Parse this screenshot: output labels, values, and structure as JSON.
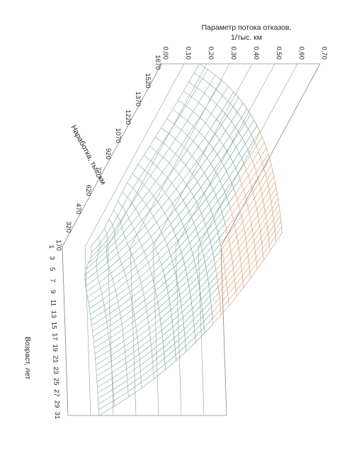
{
  "chart_data": {
    "type": "surface",
    "title": "",
    "z_axis": {
      "label_line1": "Параметр потока отказов,",
      "label_line2": "1/тыс. км",
      "ticks": [
        "0,00",
        "0,10",
        "0,20",
        "0,30",
        "0,40",
        "0,50",
        "0,60",
        "0,70"
      ],
      "range": [
        0,
        0.7
      ]
    },
    "y_axis": {
      "label": "Наработка, тыс. км",
      "ticks": [
        "170",
        "320",
        "470",
        "620",
        "770",
        "920",
        "1070",
        "1220",
        "1370",
        "1520",
        "1670"
      ],
      "range": [
        170,
        1670
      ]
    },
    "x_axis": {
      "label": "Возраст, лет",
      "ticks": [
        "1",
        "3",
        "5",
        "7",
        "9",
        "11",
        "13",
        "15",
        "17",
        "19",
        "21",
        "23",
        "25",
        "27",
        "29",
        "31"
      ],
      "range": [
        1,
        31
      ]
    },
    "series_colors": {
      "band_low": "#8fb3ae",
      "band_mid": "#7aa79f",
      "band_high": "#d9a27e",
      "band_top": "#5e7f86"
    },
    "grid": true
  }
}
